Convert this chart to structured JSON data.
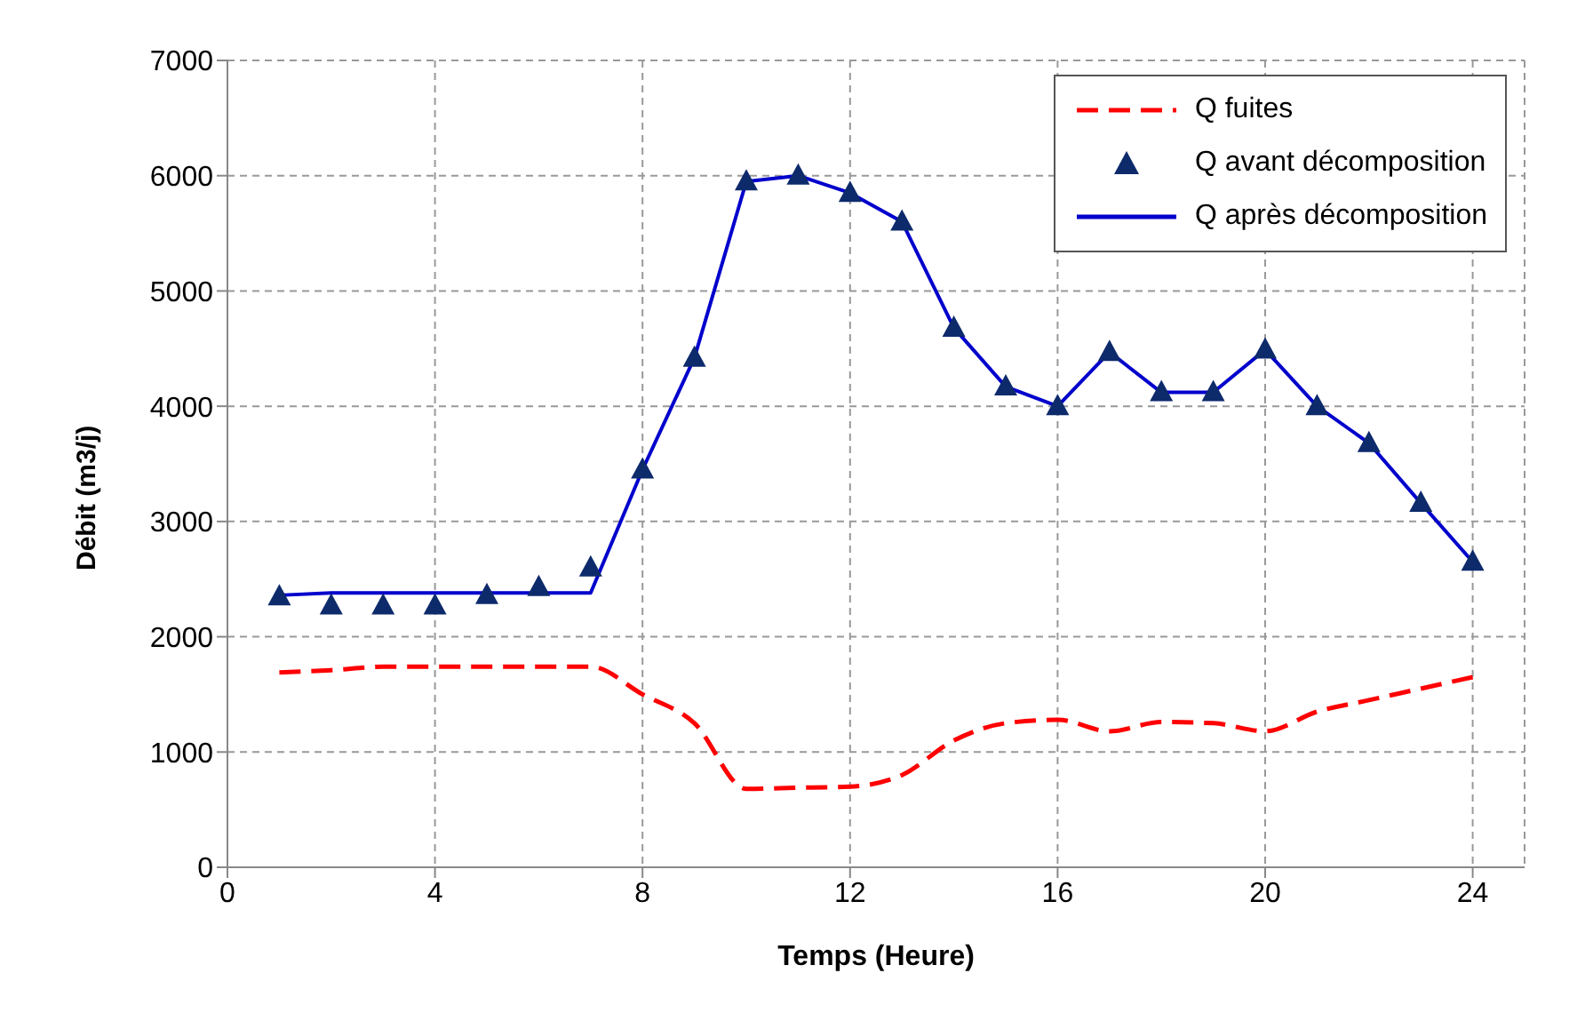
{
  "chart_data": {
    "type": "line",
    "xlabel": "Temps (Heure)",
    "ylabel": "Débit (m3/j)",
    "x": [
      1,
      2,
      3,
      4,
      5,
      6,
      7,
      8,
      9,
      10,
      11,
      12,
      13,
      14,
      15,
      16,
      17,
      18,
      19,
      20,
      21,
      22,
      23,
      24
    ],
    "series": [
      {
        "name": "Q fuites",
        "type": "line",
        "color": "#ff0000",
        "line_style": "dashed",
        "marker": "none",
        "values": [
          1690,
          1710,
          1740,
          1740,
          1740,
          1740,
          1740,
          1500,
          1250,
          680,
          690,
          700,
          800,
          1100,
          1250,
          1280,
          1180,
          1260,
          1250,
          1180,
          1350,
          1450,
          1550,
          1650
        ]
      },
      {
        "name": "Q avant décomposition",
        "type": "scatter",
        "color": "#0d2a6b",
        "marker": "triangle",
        "values": [
          2350,
          2270,
          2270,
          2270,
          2360,
          2430,
          2600,
          3450,
          4420,
          5950,
          6000,
          5850,
          5600,
          4680,
          4170,
          4000,
          4470,
          4120,
          4120,
          4490,
          4000,
          3680,
          3160,
          2650
        ]
      },
      {
        "name": "Q après décomposition",
        "type": "line",
        "color": "#0000cc",
        "line_style": "solid",
        "marker": "none",
        "values": [
          2360,
          2380,
          2380,
          2380,
          2380,
          2380,
          2380,
          3450,
          4420,
          5950,
          6000,
          5850,
          5600,
          4680,
          4170,
          4000,
          4470,
          4120,
          4120,
          4490,
          4000,
          3680,
          3160,
          2650
        ]
      }
    ],
    "xlim": [
      0,
      25
    ],
    "xticks": [
      0,
      4,
      8,
      12,
      16,
      20,
      24
    ],
    "ylim": [
      0,
      7000
    ],
    "yticks": [
      0,
      1000,
      2000,
      3000,
      4000,
      5000,
      6000,
      7000
    ],
    "grid": true,
    "legend": "top right"
  }
}
